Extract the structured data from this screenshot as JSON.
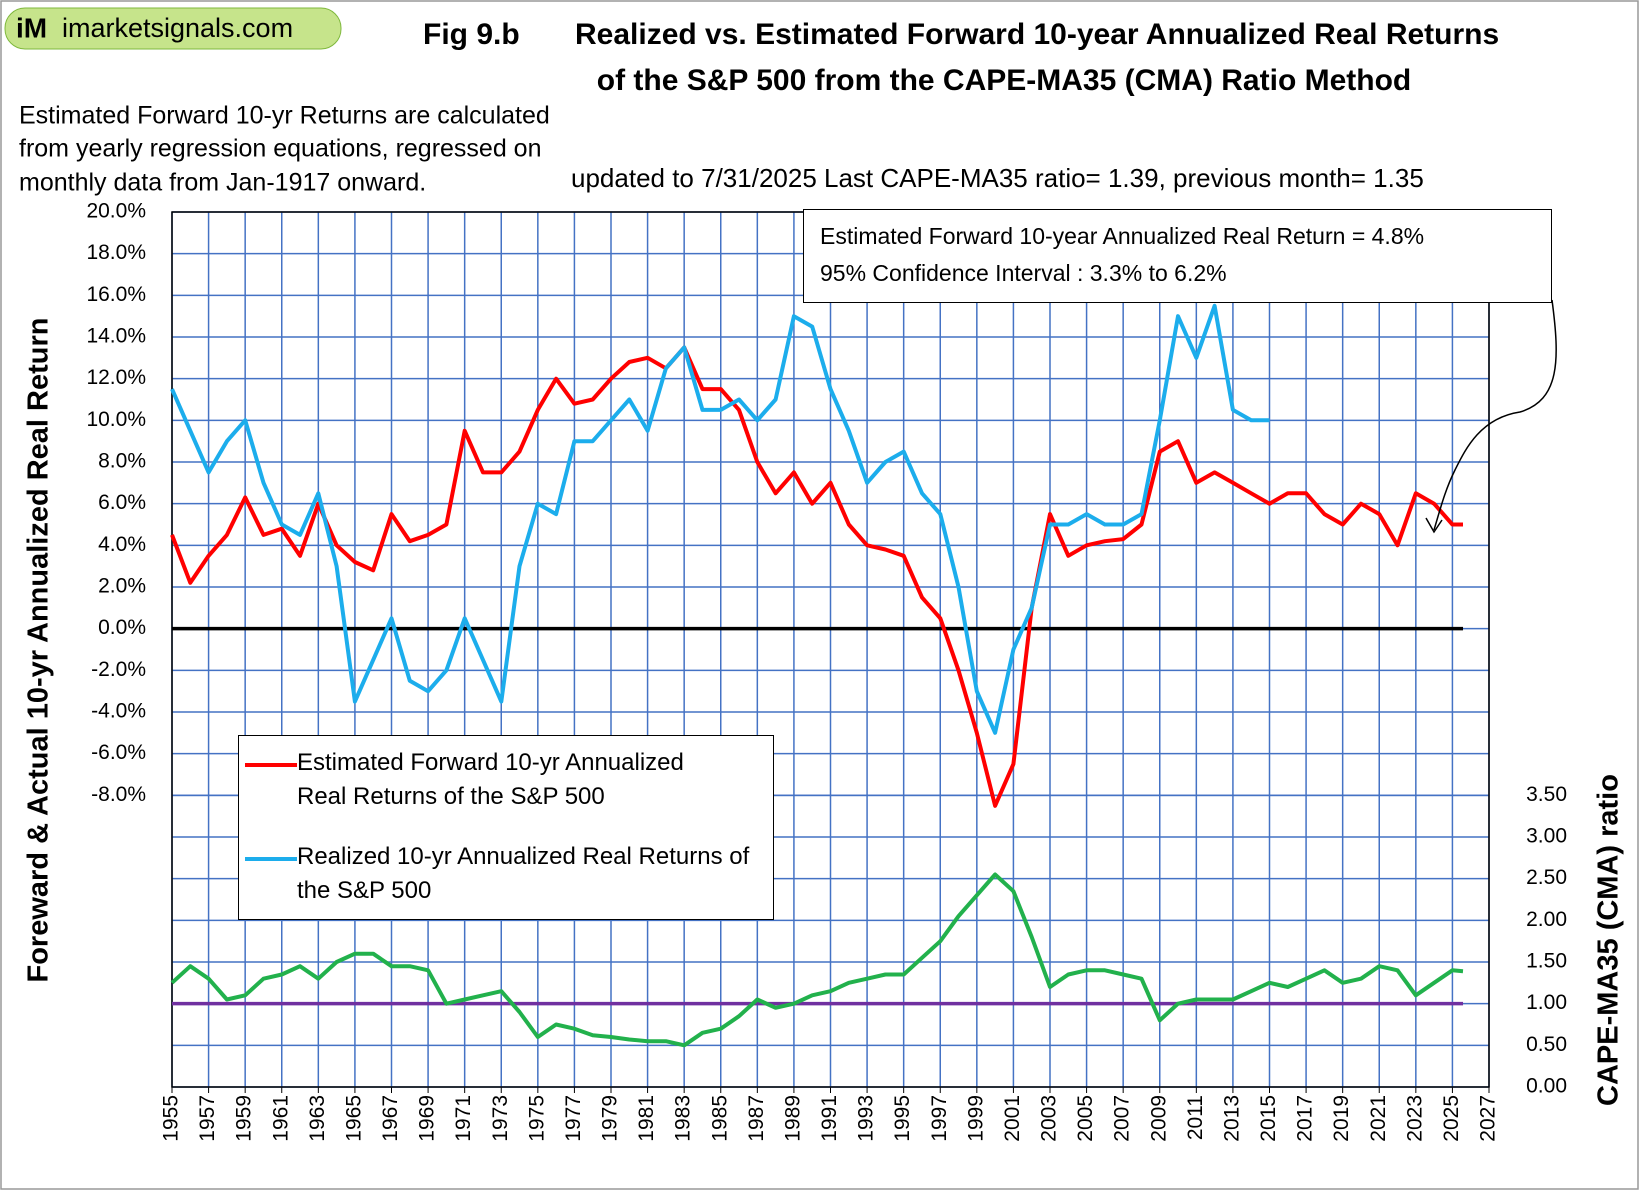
{
  "chart_data": {
    "type": "line",
    "logo": {
      "mark": "iM",
      "text": "imarketsignals.com"
    },
    "figure_label": "Fig 9.b",
    "title_lines": [
      "Realized vs. Estimated Forward 10-year Annualized  Real Returns",
      "of the S&P 500 from the CAPE-MA35 (CMA) Ratio Method"
    ],
    "note_lines": [
      "Estimated Forward 10-yr Returns are calculated",
      "from yearly regression equations, regressed on",
      "monthly data from Jan-1917 onward."
    ],
    "subtitle": "updated to  7/31/2025  Last CAPE-MA35 ratio= 1.39, previous month= 1.35",
    "annotation_lines": [
      "Estimated Forward 10-year Annualized Real Return = 4.8%",
      "95% Confidence Interval : 3.3% to 6.2%"
    ],
    "y_label": "Foreward & Actual 10-yr Annualized  Real Return",
    "y2_label": "CAPE-MA35 (CMA) ratio",
    "grid": true,
    "grid_color": "#4472c4",
    "xlim": [
      1955,
      2027
    ],
    "xticks": [
      1955,
      1957,
      1959,
      1961,
      1963,
      1965,
      1967,
      1969,
      1971,
      1973,
      1975,
      1977,
      1979,
      1981,
      1983,
      1985,
      1987,
      1989,
      1991,
      1993,
      1995,
      1997,
      1999,
      2001,
      2003,
      2005,
      2007,
      2009,
      2011,
      2013,
      2015,
      2017,
      2019,
      2021,
      2023,
      2025,
      2027
    ],
    "ylim": [
      -22,
      20
    ],
    "yticks": [
      {
        "value": 20,
        "label": "20.0%"
      },
      {
        "value": 18,
        "label": "18.0%"
      },
      {
        "value": 16,
        "label": "16.0%"
      },
      {
        "value": 14,
        "label": "14.0%"
      },
      {
        "value": 12,
        "label": "12.0%"
      },
      {
        "value": 10,
        "label": "10.0%"
      },
      {
        "value": 8,
        "label": "8.0%"
      },
      {
        "value": 6,
        "label": "6.0%"
      },
      {
        "value": 4,
        "label": "4.0%"
      },
      {
        "value": 2,
        "label": "2.0%"
      },
      {
        "value": 0,
        "label": "0.0%"
      },
      {
        "value": -2,
        "label": "-2.0%"
      },
      {
        "value": -4,
        "label": "-4.0%"
      },
      {
        "value": -6,
        "label": "-6.0%"
      },
      {
        "value": -8,
        "label": "-8.0%"
      }
    ],
    "y2lim": [
      0,
      10.5
    ],
    "y2ticks": [
      {
        "value": 0,
        "label": "0.00"
      },
      {
        "value": 0.5,
        "label": "0.50"
      },
      {
        "value": 1,
        "label": "1.00"
      },
      {
        "value": 1.5,
        "label": "1.50"
      },
      {
        "value": 2,
        "label": "2.00"
      },
      {
        "value": 2.5,
        "label": "2.50"
      },
      {
        "value": 3,
        "label": "3.00"
      },
      {
        "value": 3.5,
        "label": "3.50"
      }
    ],
    "reference_lines": [
      {
        "value": 0,
        "color": "#000000"
      },
      {
        "value": 1,
        "axis": "y2",
        "color": "#7030a0"
      }
    ],
    "x": [
      1955,
      1956,
      1957,
      1958,
      1959,
      1960,
      1961,
      1962,
      1963,
      1964,
      1965,
      1966,
      1967,
      1968,
      1969,
      1970,
      1971,
      1972,
      1973,
      1974,
      1975,
      1976,
      1977,
      1978,
      1979,
      1980,
      1981,
      1982,
      1983,
      1984,
      1985,
      1986,
      1987,
      1988,
      1989,
      1990,
      1991,
      1992,
      1993,
      1994,
      1995,
      1996,
      1997,
      1998,
      1999,
      2000,
      2001,
      2002,
      2003,
      2004,
      2005,
      2006,
      2007,
      2008,
      2009,
      2010,
      2011,
      2012,
      2013,
      2014,
      2015,
      2016,
      2017,
      2018,
      2019,
      2020,
      2021,
      2022,
      2023,
      2024,
      2025,
      2025.58
    ],
    "series": [
      {
        "name": "Estimated Forward 10-yr Annualized Real Returns of the S&P 500",
        "color": "#ff0000",
        "values": [
          4.5,
          2.2,
          3.5,
          4.5,
          6.3,
          4.5,
          4.8,
          3.5,
          6.0,
          4.0,
          3.2,
          2.8,
          5.5,
          4.2,
          4.5,
          5.0,
          9.5,
          7.5,
          7.5,
          8.5,
          10.5,
          12.0,
          10.8,
          11.0,
          12.0,
          12.8,
          13.0,
          12.5,
          13.5,
          11.5,
          11.5,
          10.5,
          8.0,
          6.5,
          7.5,
          6.0,
          7.0,
          5.0,
          4.0,
          3.8,
          3.5,
          1.5,
          0.5,
          -2.0,
          -5.0,
          -8.5,
          -6.5,
          1.0,
          5.5,
          3.5,
          4.0,
          4.2,
          4.3,
          5.0,
          8.5,
          9.0,
          7.0,
          7.5,
          7.0,
          6.5,
          6.0,
          6.5,
          6.5,
          5.5,
          5.0,
          6.0,
          5.5,
          4.0,
          6.5,
          6.0,
          5.0,
          5.0
        ]
      },
      {
        "name": "Realized 10-yr Annualized Real Returns of the S&P 500",
        "color": "#1cadec",
        "values": [
          11.5,
          9.5,
          7.5,
          9.0,
          10.0,
          7.0,
          5.0,
          4.5,
          6.5,
          3.0,
          -3.5,
          -1.5,
          0.5,
          -2.5,
          -3.0,
          -2.0,
          0.5,
          -1.5,
          -3.5,
          3.0,
          6.0,
          5.5,
          9.0,
          9.0,
          10.0,
          11.0,
          9.5,
          12.5,
          13.5,
          10.5,
          10.5,
          11.0,
          10.0,
          11.0,
          15.0,
          14.5,
          11.5,
          9.5,
          7.0,
          8.0,
          8.5,
          6.5,
          5.5,
          2.0,
          -3.0,
          -5.0,
          -1.0,
          1.0,
          5.0,
          5.0,
          5.5,
          5.0,
          5.0,
          5.5,
          10.0,
          15.0,
          13.0,
          15.5,
          10.5,
          10.0,
          10.0,
          null,
          null,
          null,
          null,
          null,
          null,
          null,
          null,
          null,
          null,
          null
        ]
      },
      {
        "name": "CAPE-MA35 (CMA) ratio",
        "color": "#22b14c",
        "axis": "y2",
        "values": [
          1.25,
          1.45,
          1.3,
          1.05,
          1.1,
          1.3,
          1.35,
          1.45,
          1.3,
          1.5,
          1.6,
          1.6,
          1.45,
          1.45,
          1.4,
          1.0,
          1.05,
          1.1,
          1.15,
          0.9,
          0.6,
          0.75,
          0.7,
          0.62,
          0.6,
          0.57,
          0.55,
          0.55,
          0.5,
          0.65,
          0.7,
          0.85,
          1.05,
          0.95,
          1.0,
          1.1,
          1.15,
          1.25,
          1.3,
          1.35,
          1.35,
          1.55,
          1.75,
          2.05,
          2.3,
          2.55,
          2.35,
          1.8,
          1.2,
          1.35,
          1.4,
          1.4,
          1.35,
          1.3,
          0.8,
          1.0,
          1.05,
          1.05,
          1.05,
          1.15,
          1.25,
          1.2,
          1.3,
          1.4,
          1.25,
          1.3,
          1.45,
          1.4,
          1.1,
          1.25,
          1.4,
          1.39
        ]
      }
    ]
  }
}
